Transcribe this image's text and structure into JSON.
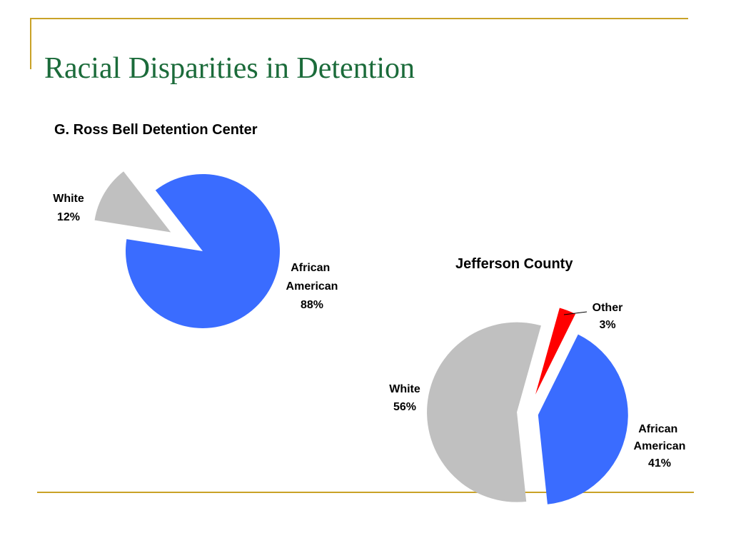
{
  "slide": {
    "title": "Racial Disparities in Detention"
  },
  "colors": {
    "frame": "#c9a227",
    "title": "#1b6b3a",
    "african_american": "#3a6cff",
    "white": "#c0c0c0",
    "other": "#ff0000"
  },
  "chart_data": [
    {
      "type": "pie",
      "title": "G. Ross Bell Detention Center",
      "slices": [
        {
          "label": "White",
          "value": 12,
          "pct_label": "12%",
          "color": "#c0c0c0",
          "exploded": true
        },
        {
          "label": "African American",
          "value": 88,
          "pct_label": "88%",
          "color": "#3a6cff",
          "exploded": false
        }
      ]
    },
    {
      "type": "pie",
      "title": "Jefferson County",
      "slices": [
        {
          "label": "White",
          "value": 56,
          "pct_label": "56%",
          "color": "#c0c0c0",
          "exploded": true
        },
        {
          "label": "Other",
          "value": 3,
          "pct_label": "3%",
          "color": "#ff0000",
          "exploded": true
        },
        {
          "label": "African American",
          "value": 41,
          "pct_label": "41%",
          "color": "#3a6cff",
          "exploded": true
        }
      ]
    }
  ]
}
